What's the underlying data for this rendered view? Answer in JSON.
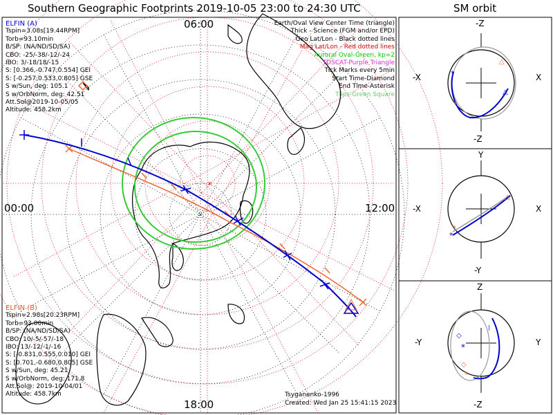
{
  "title": "Southern Geographic Footprints 2019-10-05 23:00 to 24:30 UTC",
  "right_title": "SM orbit",
  "clock_labels": {
    "top": "06:00",
    "left": "00:00",
    "right": "12:00",
    "bottom": "18:00"
  },
  "elfin_a": {
    "header": "ELFIN (A)",
    "color": "#0000cc",
    "lines": [
      "Tspin=3.08s[19.44RPM]",
      "Torb=93.10min",
      "B/SP: (NA/ND/SD/SA)",
      "CBO: -25/-38/-12/-24",
      "IBO: 3/-18/18/-15",
      "S: [0.366,-0.747,0.554] GEI",
      "S: [-0.257,0.533,0.805] GSE",
      "S w/Sun, deg: 105.1",
      "S w/OrbNorm, deg: 42.51",
      "Att.Sol@2019-10-05/05",
      "Altitude: 458.2km"
    ]
  },
  "elfin_b": {
    "header": "ELFIN (B)",
    "color": "#e05a2a",
    "lines": [
      "Tspin=2.98s[20.23RPM]",
      "Torb=93.00min",
      "B/SP: (NA/ND/SD/SA)",
      "CBO: 10/-5/-57/-18",
      "IBO: 13/-12/-1/-16",
      "S: [-0.831,0.555,0.010] GEI",
      "S: [0.701,-0.680,0.805] GSE",
      "S w/Sun, deg: 45.21",
      "S w/OrbNorm, deg: 171.8",
      "Att.Sol@: 2019-10-04/01",
      "Altitude: 458.7km"
    ]
  },
  "legend": [
    {
      "text": "Earth/Oval View Center Time (triangle)",
      "color": "#000000"
    },
    {
      "text": "Thick - Science (FGM and/or EPD)",
      "color": "#000000"
    },
    {
      "text": "Geo Lat/Lon - Black dotted lines",
      "color": "#000000"
    },
    {
      "text": "Mag Lat/Lon - Red dotted lines",
      "color": "#cc0000"
    },
    {
      "text": "Auroral Oval-Green, kp=2",
      "color": "#00cc00"
    },
    {
      "text": "TDSCAT-Purple Triangle",
      "color": "#cc33cc"
    },
    {
      "text": "Tick Marks every 5min",
      "color": "#000000"
    },
    {
      "text": "Start Time-Diamond",
      "color": "#000000"
    },
    {
      "text": "End Time-Asterisk",
      "color": "#000000"
    },
    {
      "text": "Tiles-Green Square",
      "color": "#66cc66"
    }
  ],
  "credit": "Tsyganenko-1996",
  "created": "Created: Wed Jan 25 15:41:15 2023",
  "panels": [
    {
      "top": "-Z",
      "bottom": "-Z",
      "left": "-X",
      "right": "X"
    },
    {
      "top": "Y",
      "bottom": "-Y",
      "left": "-X",
      "right": "X"
    },
    {
      "top": "Z",
      "bottom": "-Z",
      "left": "-Y",
      "right": "Y"
    }
  ],
  "colors": {
    "geo_grid": "#000000",
    "mag_grid": "#cc0000",
    "oval": "#33cc33",
    "track_a": "#0000cc",
    "track_b": "#ee6633"
  }
}
